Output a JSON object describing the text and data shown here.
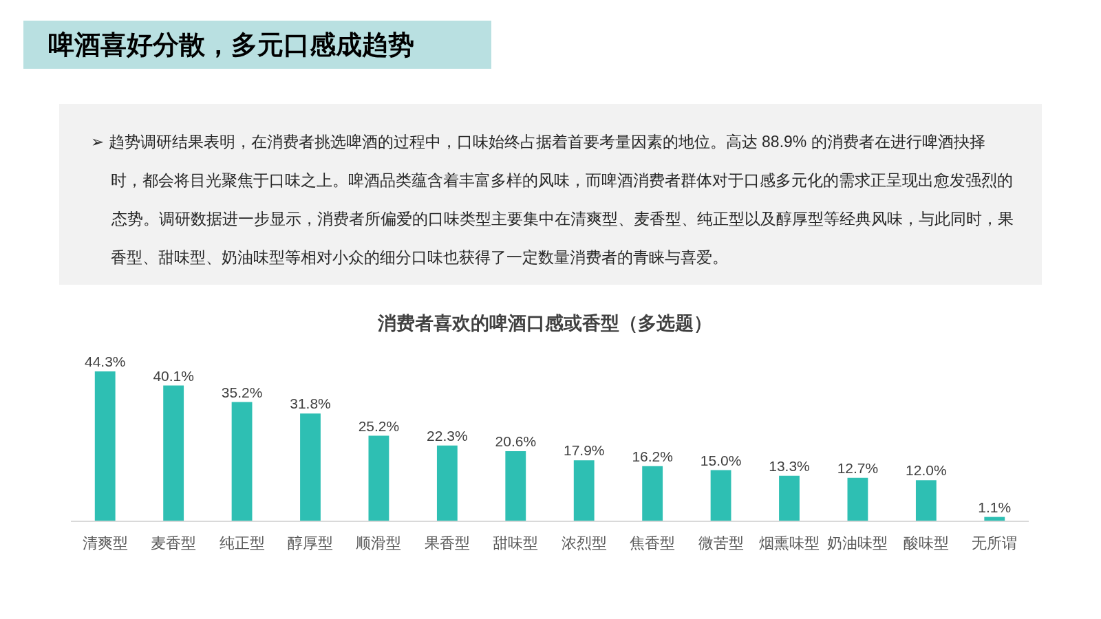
{
  "chart_data": {
    "type": "bar",
    "title": "啤酒喜好分散，多元口感成趋势",
    "subtitle": "消费者喜欢的啤酒口感或香型（多选题）",
    "annotations": [
      "➢ 趋势调研结果表明，在消费者挑选啤酒的过程中，口味始终占据着首要考量因素的地位。高达 88.9% 的消费者在进行啤酒抉择时，都会将目光聚焦于口味之上。啤酒品类蕴含着丰富多样的风味，而啤酒消费者群体对于口感多元化的需求正呈现出愈发强烈的态势。调研数据进一步显示，消费者所偏爱的口味类型主要集中在清爽型、麦香型、纯正型以及醇厚型等经典风味，与此同时，果香型、甜味型、奶油味型等相对小众的细分口味也获得了一定数量消费者的青睐与喜爱。"
    ],
    "categories": [
      "清爽型",
      "麦香型",
      "纯正型",
      "醇厚型",
      "顺滑型",
      "果香型",
      "甜味型",
      "浓烈型",
      "焦香型",
      "微苦型",
      "烟熏味型",
      "奶油味型",
      "酸味型",
      "无所谓"
    ],
    "series": [
      {
        "color": "#2ebfb3",
        "values": [
          44.3,
          40.1,
          35.2,
          31.8,
          25.2,
          22.3,
          20.6,
          17.9,
          16.2,
          15.0,
          13.3,
          12.7,
          12.0,
          1.1
        ],
        "value_labels": [
          "44.3%",
          "40.1%",
          "35.2%",
          "31.8%",
          "25.2%",
          "22.3%",
          "20.6%",
          "17.9%",
          "16.2%",
          "15.0%",
          "13.3%",
          "12.7%",
          "12.0%",
          "1.1%"
        ]
      }
    ]
  }
}
